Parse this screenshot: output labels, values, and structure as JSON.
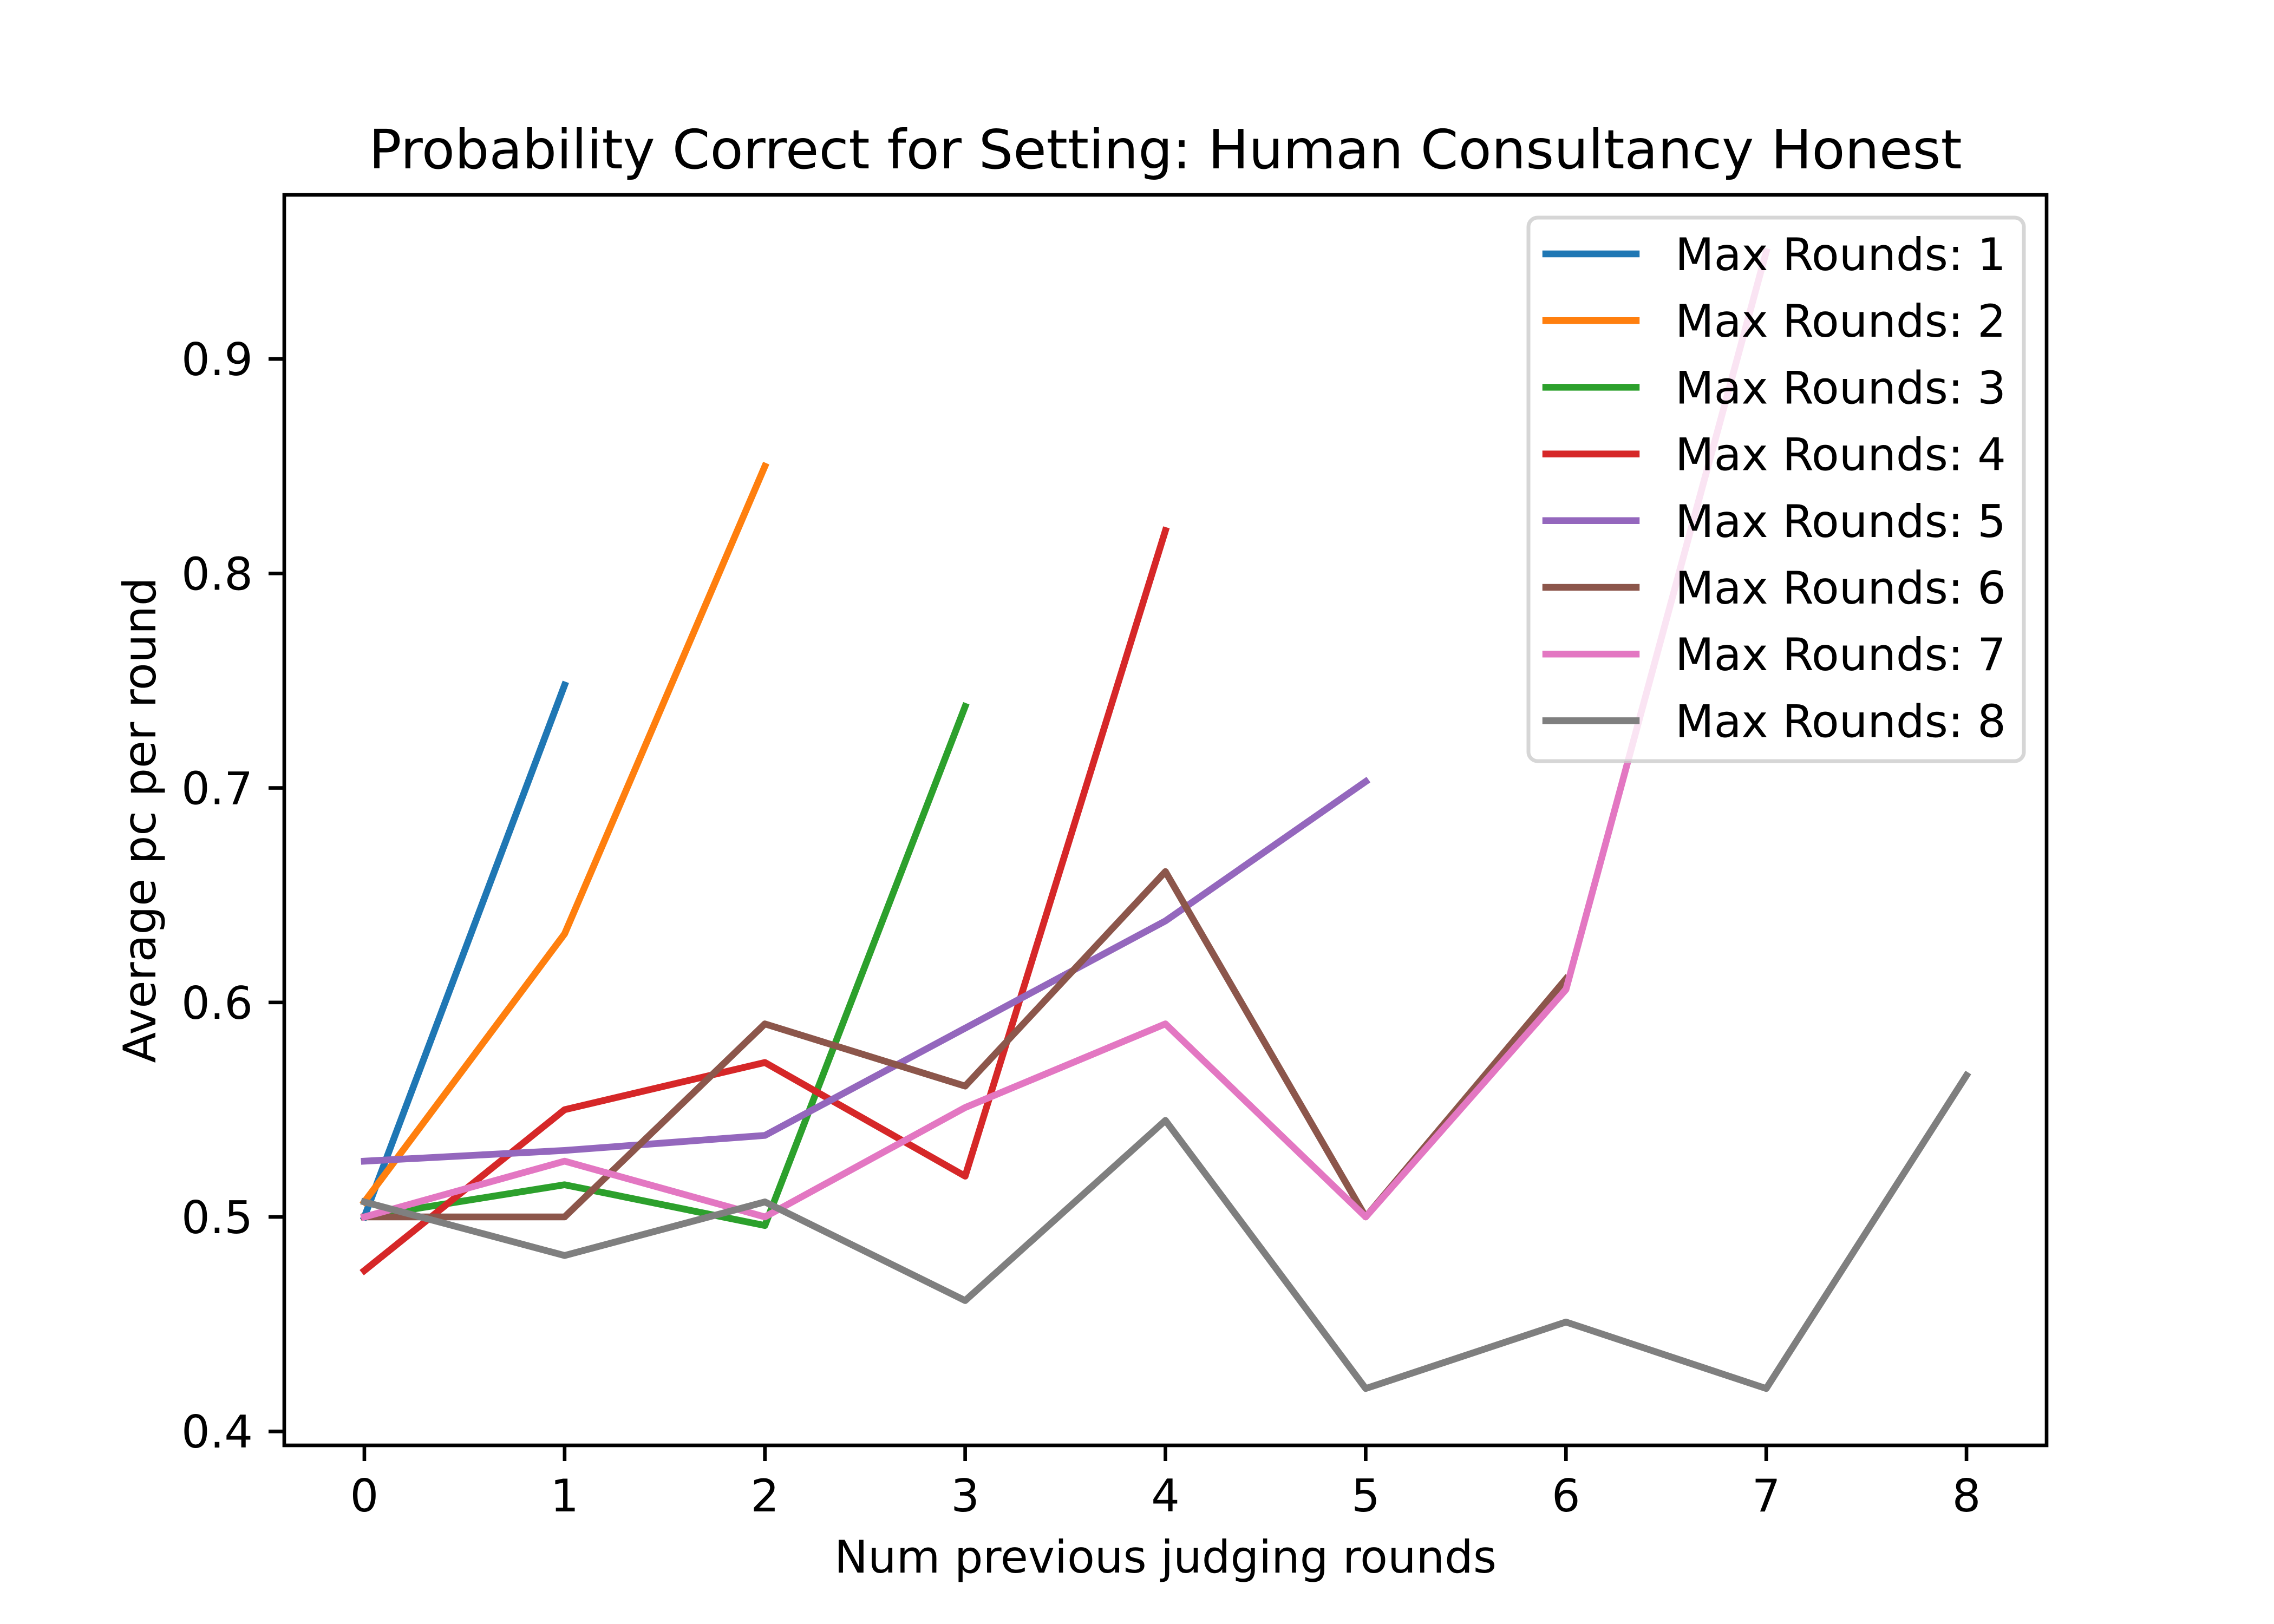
{
  "chart_data": {
    "type": "line",
    "title": "Probability Correct for Setting: Human Consultancy Honest",
    "xlabel": "Num previous judging rounds",
    "ylabel": "Average pc per round",
    "xlim": [
      -0.4,
      8.4
    ],
    "ylim": [
      0.3935,
      0.9765
    ],
    "x_ticks": [
      0,
      1,
      2,
      3,
      4,
      5,
      6,
      7,
      8
    ],
    "x_tick_labels": [
      "0",
      "1",
      "2",
      "3",
      "4",
      "5",
      "6",
      "7",
      "8"
    ],
    "y_ticks": [
      0.4,
      0.5,
      0.6,
      0.7,
      0.8,
      0.9
    ],
    "y_tick_labels": [
      "0.4",
      "0.5",
      "0.6",
      "0.7",
      "0.8",
      "0.9"
    ],
    "grid": false,
    "legend_position": "top-right",
    "series": [
      {
        "name": "Max Rounds: 1",
        "color": "#1f77b4",
        "x": [
          0,
          1
        ],
        "y": [
          0.5,
          0.748
        ]
      },
      {
        "name": "Max Rounds: 2",
        "color": "#ff7f0e",
        "x": [
          0,
          1,
          2
        ],
        "y": [
          0.507,
          0.632,
          0.85
        ]
      },
      {
        "name": "Max Rounds: 3",
        "color": "#2ca02c",
        "x": [
          0,
          1,
          2,
          3
        ],
        "y": [
          0.5,
          0.515,
          0.496,
          0.738
        ]
      },
      {
        "name": "Max Rounds: 4",
        "color": "#d62728",
        "x": [
          0,
          1,
          2,
          3,
          4
        ],
        "y": [
          0.475,
          0.55,
          0.572,
          0.519,
          0.82
        ]
      },
      {
        "name": "Max Rounds: 5",
        "color": "#9467bd",
        "x": [
          0,
          1,
          2,
          3,
          4,
          5
        ],
        "y": [
          0.526,
          0.531,
          0.538,
          0.588,
          0.638,
          0.703
        ]
      },
      {
        "name": "Max Rounds: 6",
        "color": "#8c564b",
        "x": [
          0,
          1,
          2,
          3,
          4,
          5,
          6
        ],
        "y": [
          0.5,
          0.5,
          0.59,
          0.561,
          0.661,
          0.5,
          0.611
        ]
      },
      {
        "name": "Max Rounds: 7",
        "color": "#e377c2",
        "x": [
          0,
          1,
          2,
          3,
          4,
          5,
          6,
          7
        ],
        "y": [
          0.5,
          0.526,
          0.5,
          0.551,
          0.59,
          0.5,
          0.606,
          0.95
        ]
      },
      {
        "name": "Max Rounds: 8",
        "color": "#7f7f7f",
        "x": [
          0,
          1,
          2,
          3,
          4,
          5,
          6,
          7,
          8
        ],
        "y": [
          0.507,
          0.482,
          0.507,
          0.461,
          0.545,
          0.42,
          0.451,
          0.42,
          0.566
        ]
      }
    ]
  }
}
